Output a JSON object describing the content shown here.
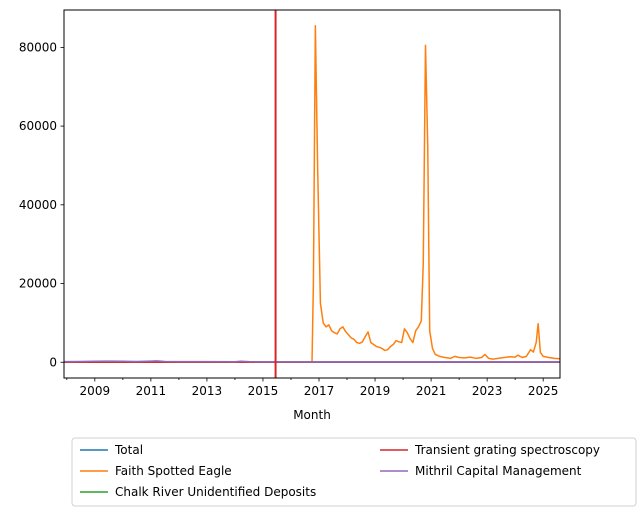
{
  "chart_data": {
    "type": "line",
    "title": "",
    "xlabel": "Month",
    "ylabel": "",
    "xlim": [
      2007.9,
      2025.6
    ],
    "ylim": [
      -4000,
      89500
    ],
    "x_ticks": [
      2009,
      2011,
      2013,
      2015,
      2017,
      2019,
      2021,
      2023,
      2025
    ],
    "y_ticks": [
      0,
      20000,
      40000,
      60000,
      80000
    ],
    "grid": false,
    "legend_placement": "below",
    "vertical_line": {
      "x": 2015.45,
      "color": "#d62728"
    },
    "series": [
      {
        "name": "Total",
        "color": "#1f77b4",
        "points": [
          [
            2007.9,
            60
          ],
          [
            2025.6,
            60
          ]
        ]
      },
      {
        "name": "Faith Spotted Eagle",
        "color": "#ff7f0e",
        "points": [
          [
            2007.9,
            0
          ],
          [
            2016.75,
            0
          ],
          [
            2016.8,
            20000
          ],
          [
            2016.87,
            85500
          ],
          [
            2016.95,
            50000
          ],
          [
            2017.05,
            15000
          ],
          [
            2017.15,
            10000
          ],
          [
            2017.25,
            9000
          ],
          [
            2017.35,
            9500
          ],
          [
            2017.45,
            8000
          ],
          [
            2017.55,
            7500
          ],
          [
            2017.65,
            7200
          ],
          [
            2017.75,
            8500
          ],
          [
            2017.85,
            9000
          ],
          [
            2017.95,
            7800
          ],
          [
            2018.05,
            7000
          ],
          [
            2018.15,
            6200
          ],
          [
            2018.25,
            5800
          ],
          [
            2018.35,
            5000
          ],
          [
            2018.45,
            4800
          ],
          [
            2018.55,
            5200
          ],
          [
            2018.65,
            6500
          ],
          [
            2018.75,
            7700
          ],
          [
            2018.85,
            5000
          ],
          [
            2018.95,
            4500
          ],
          [
            2019.05,
            4000
          ],
          [
            2019.15,
            3800
          ],
          [
            2019.25,
            3500
          ],
          [
            2019.35,
            3000
          ],
          [
            2019.45,
            3200
          ],
          [
            2019.55,
            4000
          ],
          [
            2019.65,
            4500
          ],
          [
            2019.75,
            5500
          ],
          [
            2019.85,
            5200
          ],
          [
            2019.95,
            5000
          ],
          [
            2020.05,
            8500
          ],
          [
            2020.15,
            7500
          ],
          [
            2020.25,
            6000
          ],
          [
            2020.35,
            5000
          ],
          [
            2020.45,
            8000
          ],
          [
            2020.55,
            9000
          ],
          [
            2020.65,
            10500
          ],
          [
            2020.72,
            25000
          ],
          [
            2020.8,
            80500
          ],
          [
            2020.88,
            55000
          ],
          [
            2020.95,
            8000
          ],
          [
            2021.05,
            3500
          ],
          [
            2021.15,
            2000
          ],
          [
            2021.3,
            1500
          ],
          [
            2021.5,
            1200
          ],
          [
            2021.7,
            1000
          ],
          [
            2021.85,
            1500
          ],
          [
            2022.0,
            1200
          ],
          [
            2022.2,
            1100
          ],
          [
            2022.4,
            1300
          ],
          [
            2022.6,
            1000
          ],
          [
            2022.8,
            1200
          ],
          [
            2022.92,
            2000
          ],
          [
            2023.05,
            1000
          ],
          [
            2023.2,
            800
          ],
          [
            2023.4,
            1000
          ],
          [
            2023.6,
            1200
          ],
          [
            2023.8,
            1400
          ],
          [
            2024.0,
            1300
          ],
          [
            2024.1,
            1800
          ],
          [
            2024.25,
            1200
          ],
          [
            2024.4,
            1500
          ],
          [
            2024.55,
            3200
          ],
          [
            2024.65,
            2600
          ],
          [
            2024.75,
            5000
          ],
          [
            2024.82,
            9800
          ],
          [
            2024.9,
            2500
          ],
          [
            2025.0,
            1500
          ],
          [
            2025.2,
            1200
          ],
          [
            2025.4,
            1000
          ],
          [
            2025.6,
            900
          ]
        ]
      },
      {
        "name": "Chalk River Unidentified Deposits",
        "color": "#2ca02c",
        "points": [
          [
            2007.9,
            40
          ],
          [
            2025.6,
            40
          ]
        ]
      },
      {
        "name": "Transient grating spectroscopy",
        "color": "#d62728",
        "points": [
          [
            2007.9,
            30
          ],
          [
            2025.6,
            30
          ]
        ]
      },
      {
        "name": "Mithril Capital Management",
        "color": "#9467bd",
        "points": [
          [
            2007.9,
            150
          ],
          [
            2008.5,
            200
          ],
          [
            2009.0,
            250
          ],
          [
            2009.5,
            300
          ],
          [
            2010.0,
            250
          ],
          [
            2010.5,
            200
          ],
          [
            2011.0,
            300
          ],
          [
            2011.2,
            350
          ],
          [
            2011.5,
            200
          ],
          [
            2012.0,
            150
          ],
          [
            2013.0,
            150
          ],
          [
            2014.0,
            120
          ],
          [
            2014.2,
            250
          ],
          [
            2014.5,
            150
          ],
          [
            2015.0,
            100
          ],
          [
            2016.0,
            100
          ],
          [
            2017.0,
            80
          ],
          [
            2019.0,
            60
          ],
          [
            2021.0,
            60
          ],
          [
            2023.0,
            60
          ],
          [
            2025.6,
            60
          ]
        ]
      }
    ]
  }
}
